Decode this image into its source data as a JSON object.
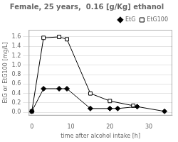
{
  "chart_data": {
    "type": "line",
    "title": "Female, 25 years,  0.16 [g/Kg] ethanol",
    "xlabel": "time after alcohol intake [h]",
    "ylabel": "EtG or EtG100 [mg/L]",
    "xlim": [
      -0.8,
      36
    ],
    "ylim": [
      -0.07,
      1.75
    ],
    "xticks": [
      0,
      10,
      20,
      30
    ],
    "yticks": [
      {
        "value": 0.0,
        "label": "0.0"
      },
      0.2,
      0.4,
      0.6,
      0.8,
      {
        "value": 1.0,
        "label": "1.0"
      },
      1.2,
      1.4,
      1.6
    ],
    "grid": "y",
    "legend": "upper right",
    "series": [
      {
        "name": "EtG",
        "color": "#000000",
        "marker": "diamond",
        "x": [
          0,
          3,
          7,
          9,
          15,
          20,
          22,
          27,
          34
        ],
        "values": [
          0.02,
          0.5,
          0.5,
          0.5,
          0.08,
          0.08,
          0.08,
          0.12,
          0.02
        ]
      },
      {
        "name": "EtG100",
        "color": "#000000",
        "marker": "open_square",
        "x": [
          0,
          3,
          7,
          9,
          15,
          20,
          26
        ],
        "values": [
          0.02,
          1.58,
          1.6,
          1.55,
          0.4,
          0.24,
          0.14
        ]
      }
    ]
  }
}
